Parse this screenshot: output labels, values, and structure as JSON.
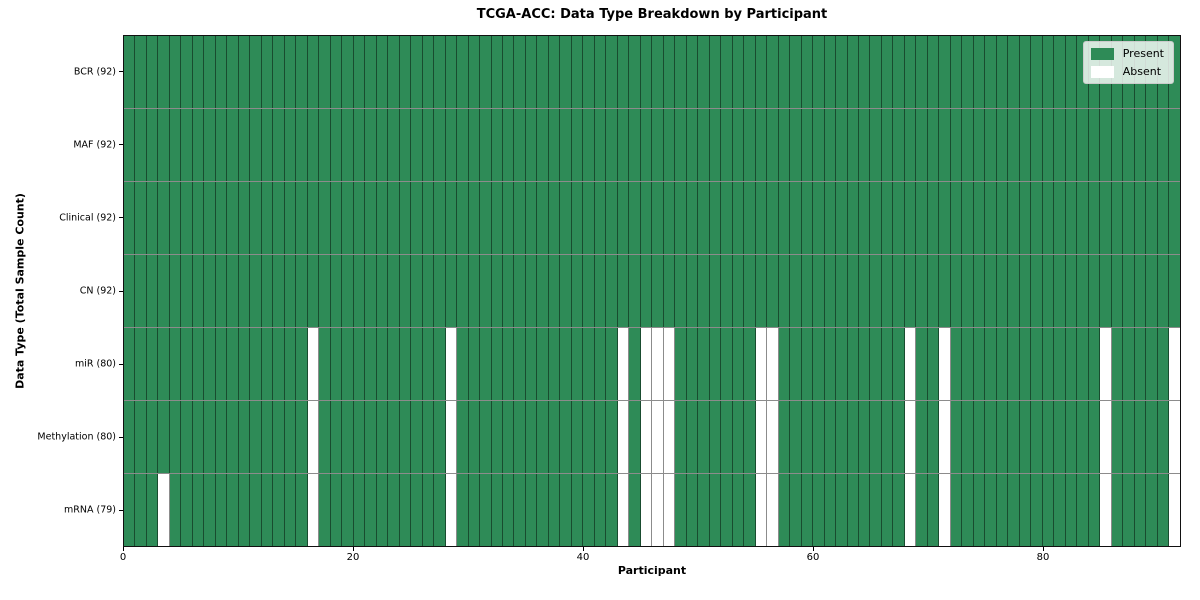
{
  "chart_data": {
    "type": "heatmap",
    "title": "TCGA-ACC: Data Type Breakdown by Participant",
    "xlabel": "Participant",
    "ylabel": "Data Type (Total Sample Count)",
    "x_ticks": [
      0,
      20,
      40,
      60,
      80
    ],
    "x_range": [
      0,
      92
    ],
    "n_participants": 92,
    "categories": [
      "BCR (92)",
      "MAF (92)",
      "Clinical (92)",
      "CN (92)",
      "miR (80)",
      "Methylation (80)",
      "mRNA (79)"
    ],
    "rows": [
      {
        "label": "BCR (92)",
        "present_count": 92,
        "absent_participants": []
      },
      {
        "label": "MAF (92)",
        "present_count": 92,
        "absent_participants": []
      },
      {
        "label": "Clinical (92)",
        "present_count": 92,
        "absent_participants": []
      },
      {
        "label": "CN (92)",
        "present_count": 92,
        "absent_participants": []
      },
      {
        "label": "miR (80)",
        "present_count": 80,
        "absent_participants": [
          16,
          28,
          43,
          45,
          46,
          47,
          55,
          56,
          68,
          71,
          85,
          91
        ]
      },
      {
        "label": "Methylation (80)",
        "present_count": 80,
        "absent_participants": [
          16,
          28,
          43,
          45,
          46,
          47,
          55,
          56,
          68,
          71,
          85,
          91
        ]
      },
      {
        "label": "mRNA (79)",
        "present_count": 79,
        "absent_participants": [
          3,
          16,
          28,
          43,
          45,
          46,
          47,
          55,
          56,
          68,
          71,
          85,
          91
        ]
      }
    ],
    "legend": {
      "position": "upper right",
      "entries": [
        {
          "label": "Present",
          "color": "#2e8b57"
        },
        {
          "label": "Absent",
          "color": "#ffffff"
        }
      ]
    },
    "colors": {
      "present": "#2e8b57",
      "absent": "#ffffff",
      "gridline": "rgba(0, 0, 0, 0.45)",
      "frame": "#111111"
    },
    "grid": true
  }
}
